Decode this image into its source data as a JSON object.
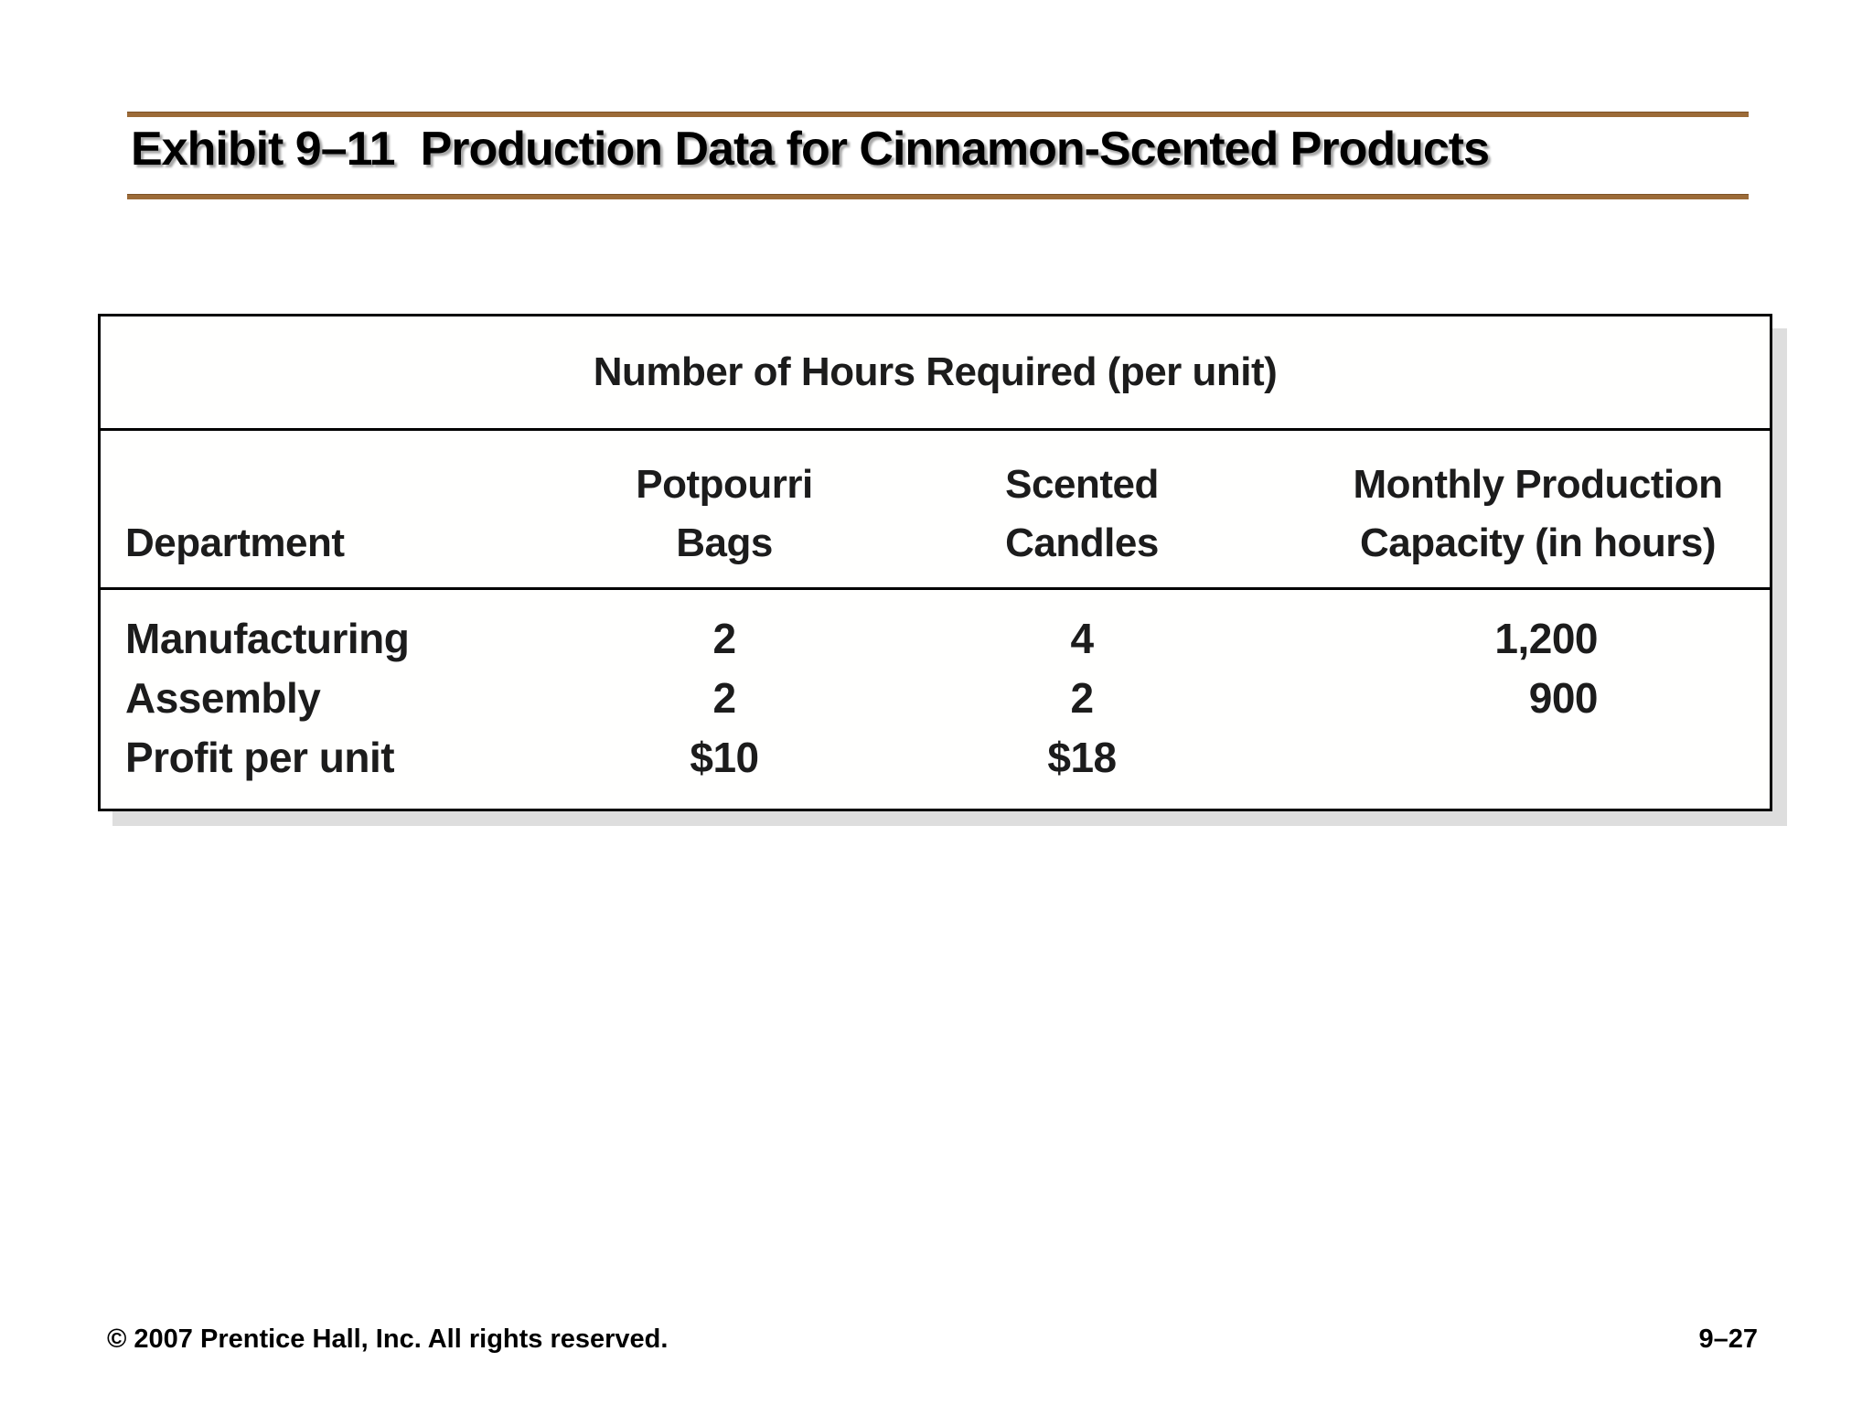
{
  "slide": {
    "title": {
      "exhibit_label": "Exhibit 9–11",
      "title_text": "Production Data for Cinnamon-Scented Products"
    },
    "table": {
      "caption": "Number of Hours Required (per unit)",
      "headers": {
        "department": "Department",
        "potpourri": [
          "Potpourri",
          "Bags"
        ],
        "candles": [
          "Scented",
          "Candles"
        ],
        "capacity": [
          "Monthly Production",
          "Capacity (in hours)"
        ]
      },
      "rows": [
        {
          "cells": [
            "Manufacturing",
            "2",
            "4",
            "1,200"
          ]
        },
        {
          "cells": [
            "Assembly",
            "2",
            "2",
            "900"
          ]
        },
        {
          "cells": [
            "Profit per unit",
            "$10",
            "$18",
            ""
          ]
        }
      ]
    },
    "footer": {
      "copyright": "© 2007 Prentice Hall, Inc. All rights reserved.",
      "page_number": "9–27"
    }
  },
  "colors": {
    "accent_rule": "#9c6b38",
    "table_border": "#000000",
    "table_shadow": "#dedede",
    "title_text": "#000000",
    "table_text": "#1c1c1c"
  }
}
